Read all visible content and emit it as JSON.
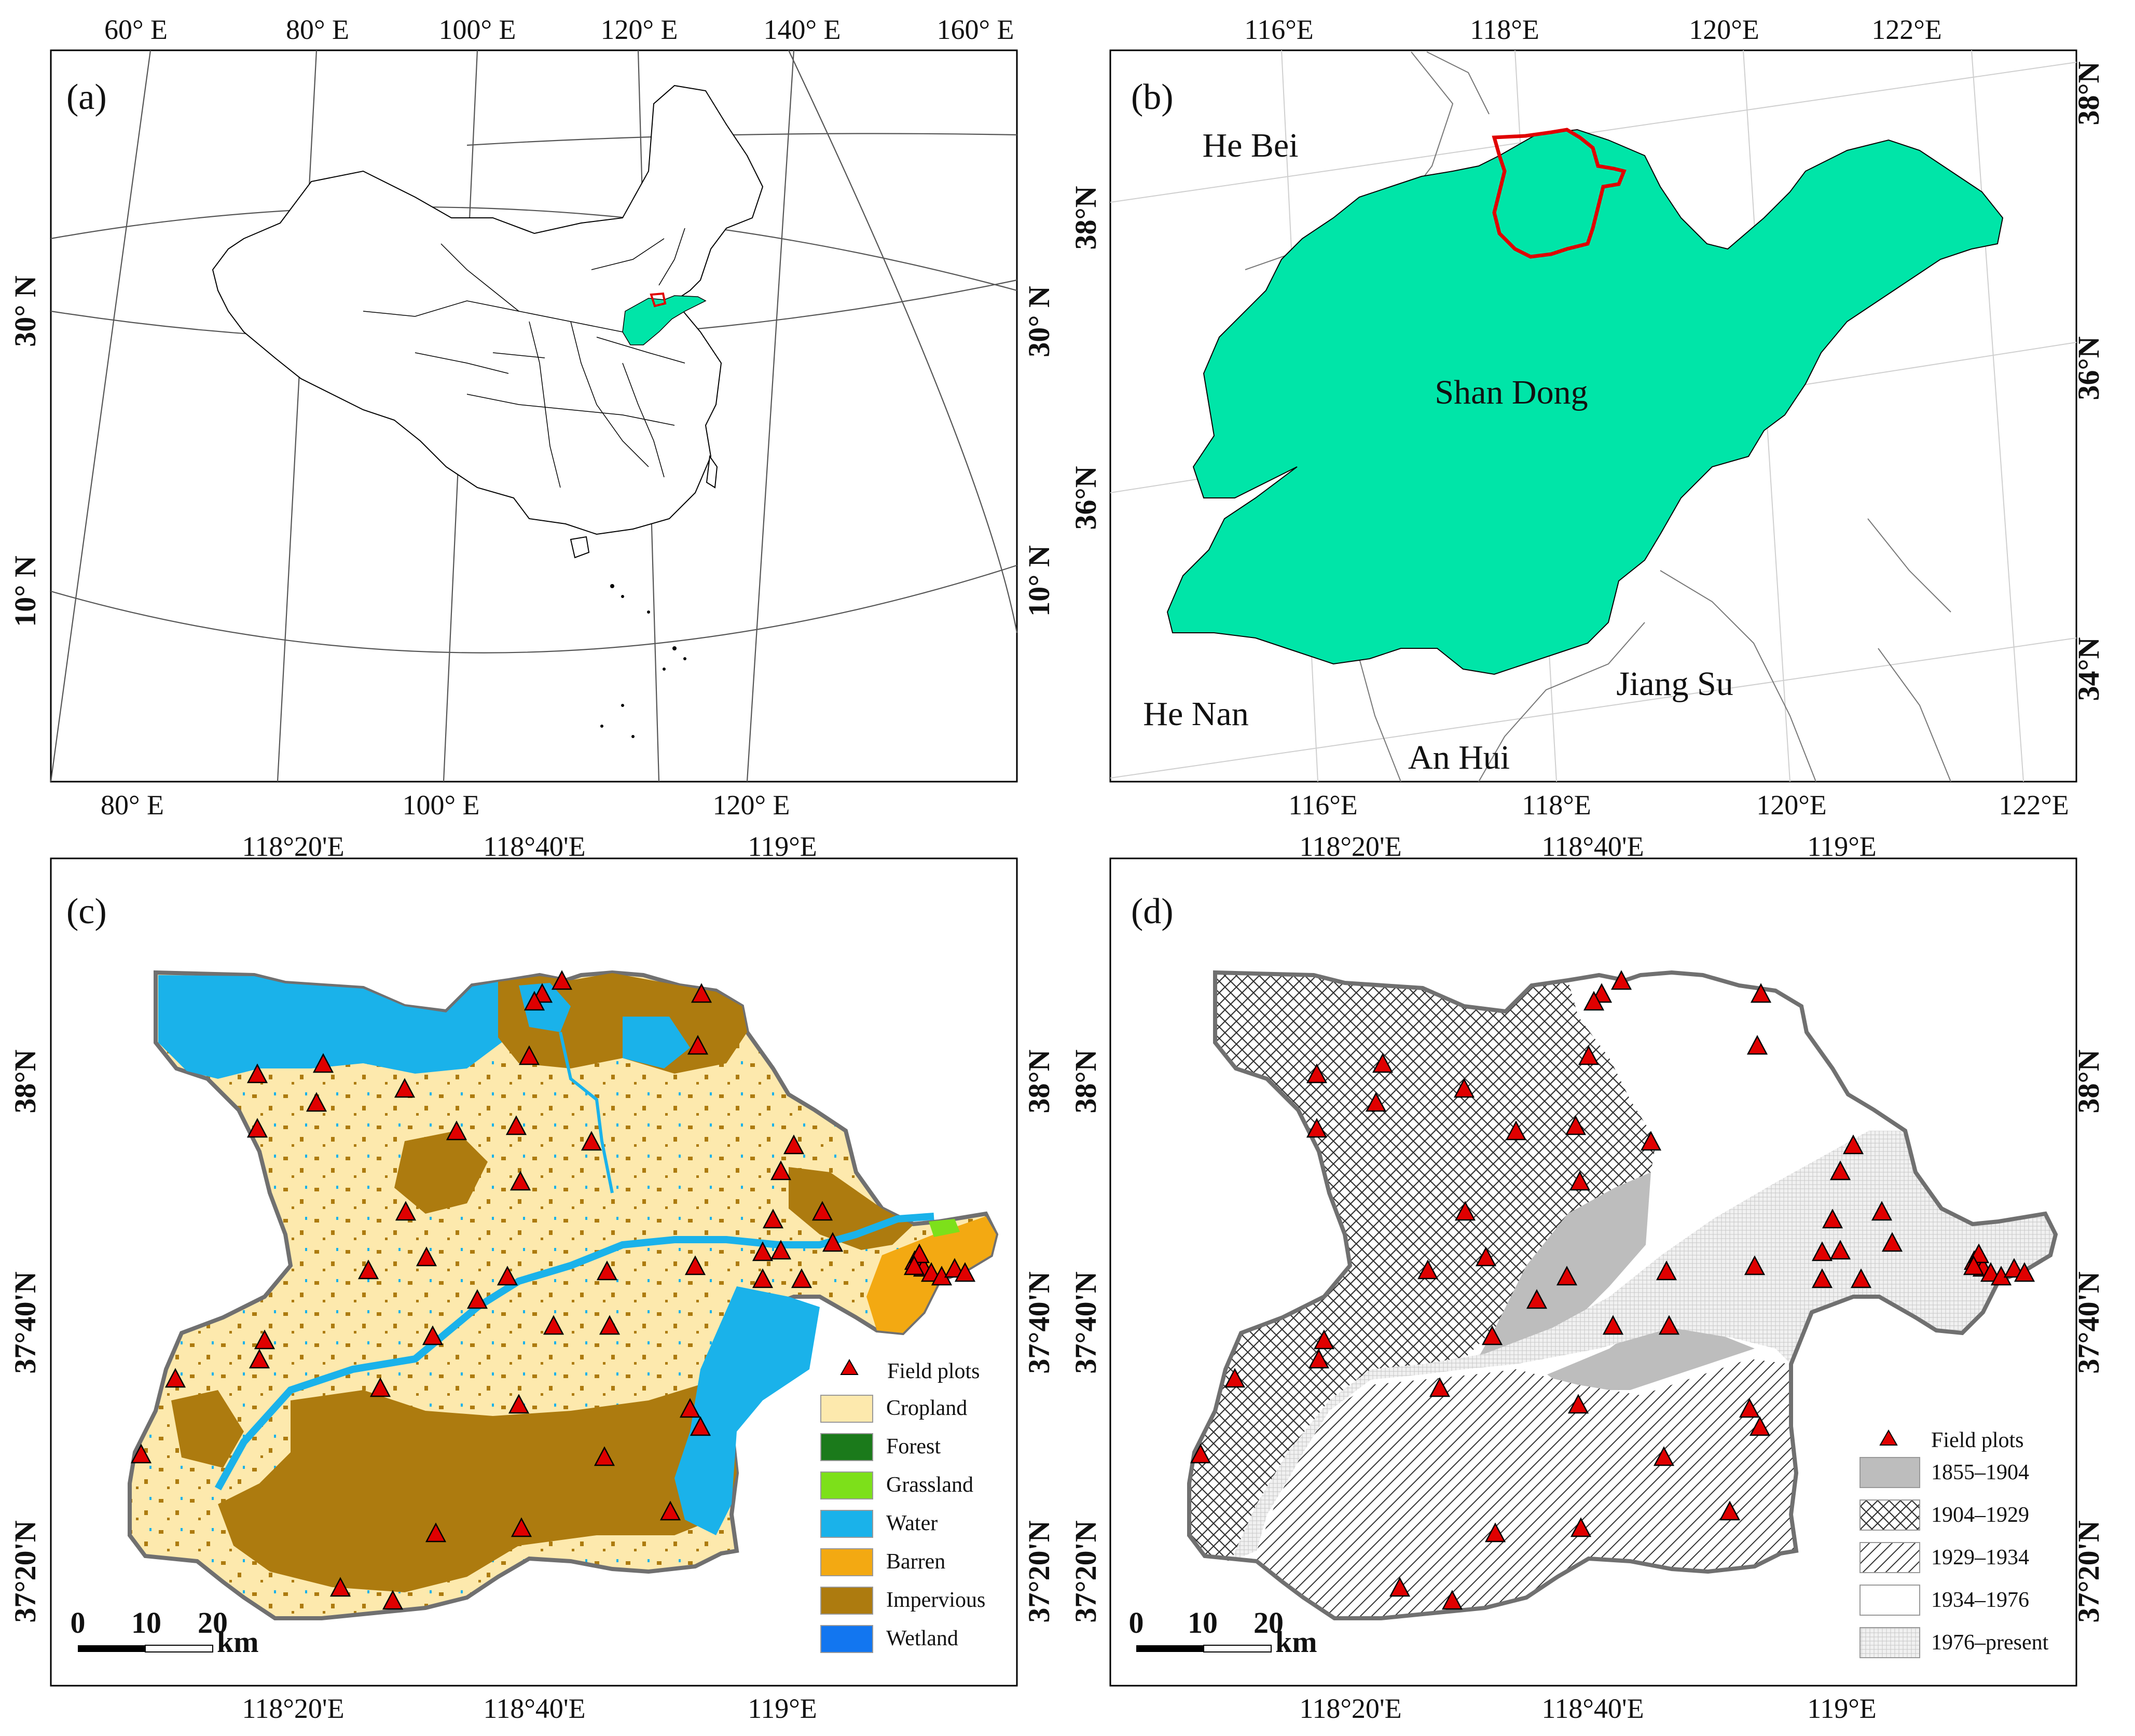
{
  "panels": {
    "a": {
      "letter": "(a)",
      "top_ticks": [
        "60° E",
        "80° E",
        "100° E",
        "120° E",
        "140° E",
        "160° E"
      ],
      "bottom_ticks": [
        "80° E",
        "100° E",
        "120° E"
      ],
      "left_ticks": [
        "30° N",
        "10° N"
      ],
      "right_ticks": [
        "30° N",
        "10° N"
      ]
    },
    "b": {
      "letter": "(b)",
      "top_ticks": [
        "116°E",
        "118°E",
        "120°E",
        "122°E"
      ],
      "bottom_ticks": [
        "116°E",
        "118°E",
        "120°E",
        "122°E"
      ],
      "left_ticks": [
        "38°N",
        "36°N"
      ],
      "right_ticks": [
        "38°N",
        "36°N",
        "34°N"
      ],
      "regions": {
        "he_bei": "He Bei",
        "shan_dong": "Shan Dong",
        "jiang_su": "Jiang Su",
        "he_nan": "He Nan",
        "an_hui": "An Hui"
      }
    },
    "c": {
      "letter": "(c)",
      "top_ticks": [
        "118°20'E",
        "118°40'E",
        "119°E"
      ],
      "bottom_ticks": [
        "118°20'E",
        "118°40'E",
        "119°E"
      ],
      "left_ticks": [
        "38°N",
        "37°40'N",
        "37°20'N"
      ],
      "right_ticks": [
        "38°N",
        "37°40'N",
        "37°20'N"
      ],
      "scale": {
        "t0": "0",
        "t1": "10",
        "t2": "20",
        "unit": "km"
      },
      "legend": {
        "field_plots": "Field plots",
        "items": [
          {
            "label": "Cropland",
            "color": "#fde9ad"
          },
          {
            "label": "Forest",
            "color": "#1b7a1b"
          },
          {
            "label": "Grassland",
            "color": "#7de01a"
          },
          {
            "label": "Water",
            "color": "#1ab2ea"
          },
          {
            "label": "Barren",
            "color": "#f3a912"
          },
          {
            "label": "Impervious",
            "color": "#ad7b0f"
          },
          {
            "label": "Wetland",
            "color": "#1276f0"
          }
        ]
      }
    },
    "d": {
      "letter": "(d)",
      "top_ticks": [
        "118°20'E",
        "118°40'E",
        "119°E"
      ],
      "bottom_ticks": [
        "118°20'E",
        "118°40'E",
        "119°E"
      ],
      "right_ticks": [
        "38°N",
        "37°40'N",
        "37°20'N"
      ],
      "scale": {
        "t0": "0",
        "t1": "10",
        "t2": "20",
        "unit": "km"
      },
      "legend": {
        "field_plots": "Field plots",
        "items": [
          {
            "label": "1855–1904",
            "pattern": "solid-gray"
          },
          {
            "label": "1904–1929",
            "pattern": "cross-hatch"
          },
          {
            "label": "1929–1934",
            "pattern": "diagonal-hatch"
          },
          {
            "label": "1934–1976",
            "pattern": "white"
          },
          {
            "label": "1976–present",
            "pattern": "fine-dots"
          }
        ]
      }
    }
  },
  "colors": {
    "shandong_fill": "#00e5a8",
    "study_area_outline": "#e00000",
    "field_plot_marker": "#e00000",
    "delta_outline": "#707070"
  }
}
